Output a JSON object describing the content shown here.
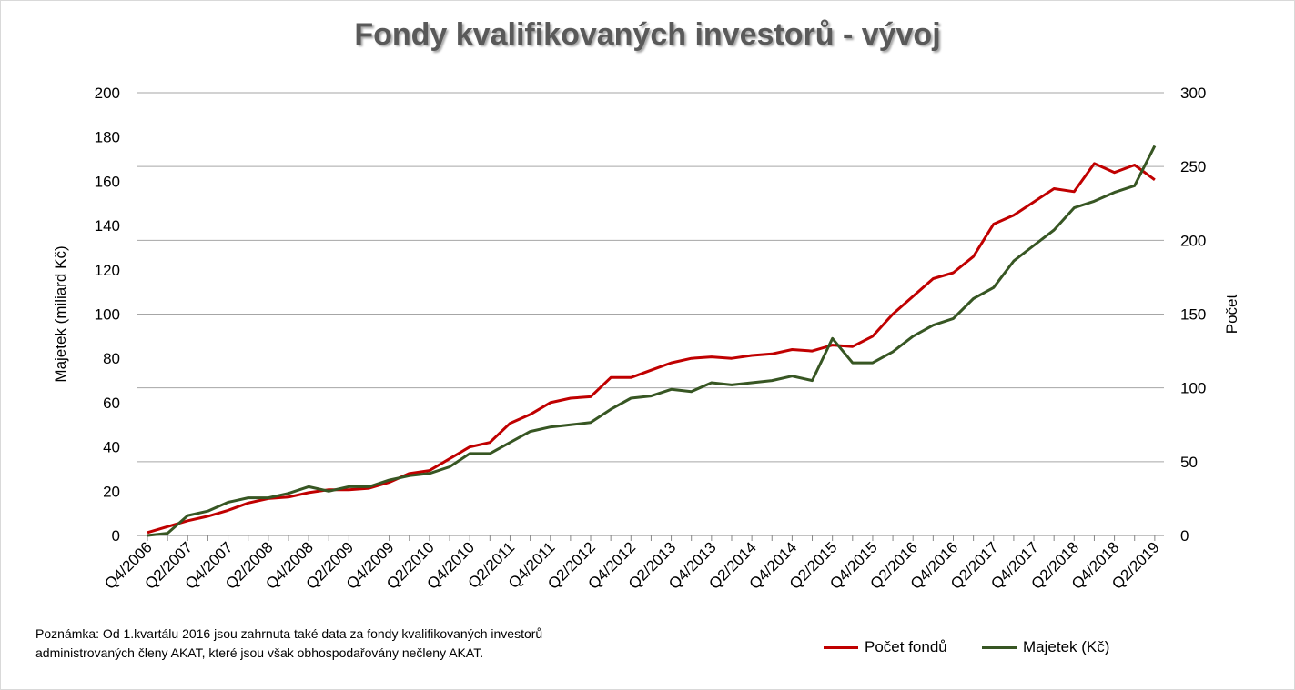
{
  "chart_data": {
    "type": "line",
    "title": "Fondy kvalifikovaných investorů - vývoj",
    "ylabel": "Majetek (miliard Kč)",
    "y2label": "Počet",
    "ylim": [
      0,
      200
    ],
    "y2lim": [
      0,
      300
    ],
    "yticks": [
      "0",
      "20",
      "40",
      "60",
      "80",
      "100",
      "120",
      "140",
      "160",
      "180",
      "200"
    ],
    "y2ticks": [
      "0",
      "50",
      "100",
      "150",
      "200",
      "250",
      "300"
    ],
    "categories": [
      "Q4/2006",
      "Q1/2007",
      "Q2/2007",
      "Q3/2007",
      "Q4/2007",
      "Q1/2008",
      "Q2/2008",
      "Q3/2008",
      "Q4/2008",
      "Q1/2009",
      "Q2/2009",
      "Q3/2009",
      "Q4/2009",
      "Q1/2010",
      "Q2/2010",
      "Q3/2010",
      "Q4/2010",
      "Q1/2011",
      "Q2/2011",
      "Q3/2011",
      "Q4/2011",
      "Q1/2012",
      "Q2/2012",
      "Q3/2012",
      "Q4/2012",
      "Q1/2013",
      "Q2/2013",
      "Q3/2013",
      "Q4/2013",
      "Q1/2014",
      "Q2/2014",
      "Q3/2014",
      "Q4/2014",
      "Q1/2015",
      "Q2/2015",
      "Q3/2015",
      "Q4/2015",
      "Q1/2016",
      "Q2/2016",
      "Q3/2016",
      "Q4/2016",
      "Q1/2017",
      "Q2/2017",
      "Q3/2017",
      "Q4/2017",
      "Q1/2018",
      "Q2/2018",
      "Q3/2018",
      "Q4/2018",
      "Q1/2019",
      "Q2/2019"
    ],
    "xticks": [
      "Q4/2006",
      "Q2/2007",
      "Q4/2007",
      "Q2/2008",
      "Q4/2008",
      "Q2/2009",
      "Q4/2009",
      "Q2/2010",
      "Q4/2010",
      "Q2/2011",
      "Q4/2011",
      "Q2/2012",
      "Q4/2012",
      "Q2/2013",
      "Q4/2013",
      "Q2/2014",
      "Q4/2014",
      "Q2/2015",
      "Q4/2015",
      "Q2/2016",
      "Q4/2016",
      "Q2/2017",
      "Q4/2017",
      "Q2/2018",
      "Q4/2018",
      "Q2/2019"
    ],
    "series": [
      {
        "name": "Počet fondů",
        "axis": "right",
        "color": "#c00000",
        "values": [
          2,
          6,
          10,
          13,
          17,
          22,
          25,
          26,
          29,
          31,
          31,
          32,
          36,
          42,
          44,
          52,
          60,
          63,
          76,
          82,
          90,
          93,
          94,
          107,
          107,
          112,
          117,
          120,
          121,
          120,
          122,
          123,
          126,
          125,
          129,
          128,
          135,
          150,
          162,
          174,
          178,
          189,
          211,
          217,
          226,
          235,
          233,
          252,
          246,
          251,
          241
        ]
      },
      {
        "name": "Majetek (Kč)",
        "axis": "left",
        "color": "#375623",
        "values": [
          0,
          1,
          9,
          11,
          15,
          17,
          17,
          19,
          22,
          20,
          22,
          22,
          25,
          27,
          28,
          31,
          37,
          37,
          42,
          47,
          49,
          50,
          51,
          57,
          62,
          63,
          66,
          65,
          69,
          68,
          69,
          70,
          72,
          70,
          89,
          78,
          78,
          83,
          90,
          95,
          98,
          107,
          112,
          124,
          131,
          138,
          148,
          151,
          155,
          158,
          176
        ]
      }
    ],
    "grid": true,
    "legend": "bottom-right"
  },
  "note": {
    "line1": "Poznámka: Od 1.kvartálu 2016 jsou zahrnuta také data za fondy kvalifikovaných investorů",
    "line2": "administrovaných členy AKAT, které jsou však obhospodařovány nečleny AKAT."
  }
}
